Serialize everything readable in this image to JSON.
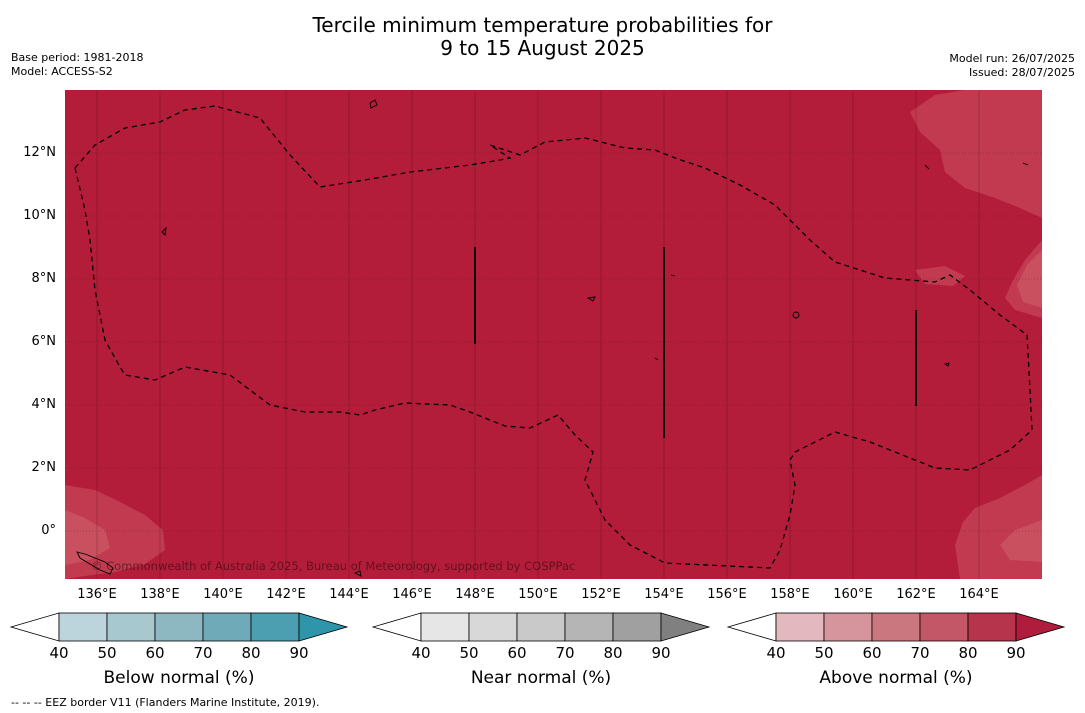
{
  "title_line1": "Tercile minimum temperature probabilities for",
  "title_line2": "9 to 15 August 2025",
  "meta_left": [
    "Base period: 1981-2018",
    "Model: ACCESS-S2"
  ],
  "meta_right": [
    "Model run: 26/07/2025",
    "Issued: 28/07/2025"
  ],
  "copyright": "© Commonwealth of Australia 2025, Bureau of Meteorology, supported by COSPPac",
  "x_ticks": [
    "136°E",
    "138°E",
    "140°E",
    "142°E",
    "144°E",
    "146°E",
    "148°E",
    "150°E",
    "152°E",
    "154°E",
    "156°E",
    "158°E",
    "160°E",
    "162°E",
    "164°E"
  ],
  "y_ticks": [
    "12°N",
    "10°N",
    "8°N",
    "6°N",
    "4°N",
    "2°N",
    "0°"
  ],
  "map_extents": {
    "lon": [
      134.7,
      165.7
    ],
    "lat": [
      -1.5,
      14.0
    ]
  },
  "legend_scale": [
    "40",
    "50",
    "60",
    "70",
    "80",
    "90"
  ],
  "colorbars": [
    {
      "title": "Below normal (%)",
      "colors": [
        "#ffffff",
        "#bcd5dc",
        "#a7c8cf",
        "#8db8c2",
        "#6eaab8",
        "#4b9fb0",
        "#2e95aa"
      ]
    },
    {
      "title": "Near normal (%)",
      "colors": [
        "#ffffff",
        "#e6e6e6",
        "#d8d8d8",
        "#c9c9c9",
        "#b5b5b5",
        "#a0a0a0",
        "#808080"
      ]
    },
    {
      "title": "Above normal (%)",
      "colors": [
        "#ffffff",
        "#e3b9bf",
        "#d6959d",
        "#cb7780",
        "#c35767",
        "#b7344d",
        "#b01c3c"
      ]
    }
  ],
  "map_colors": {
    "above_90": "#b31d3a",
    "above_80": "#c13a50",
    "above_70": "#c8505f"
  },
  "footnote": "--  --  -- EEZ border V11 (Flanders Marine Institute, 2019)."
}
